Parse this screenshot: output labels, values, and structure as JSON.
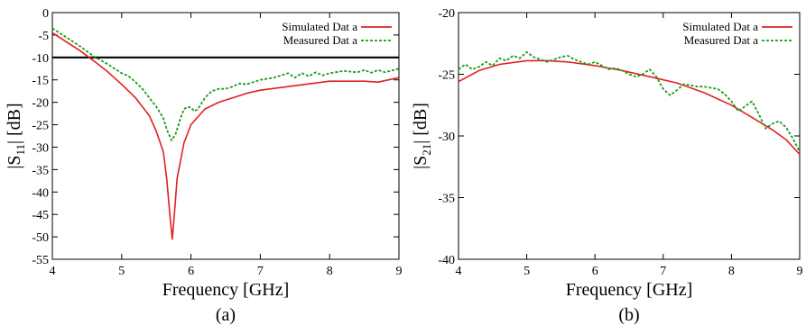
{
  "chart_data": [
    {
      "type": "line",
      "panel_label": "(a)",
      "xlabel": "Frequency    [GHz]",
      "ylabel_main": "|S",
      "ylabel_sub": "11",
      "ylabel_tail": "|  [dB]",
      "xlim": [
        4,
        9
      ],
      "ylim": [
        -55,
        0
      ],
      "xticks": [
        4,
        5,
        6,
        7,
        8,
        9
      ],
      "yticks": [
        0,
        -5,
        -10,
        -15,
        -20,
        -25,
        -30,
        -35,
        -40,
        -45,
        -50,
        -55
      ],
      "reference_line": -10,
      "legend_position": "top-right",
      "series": [
        {
          "name": "Simulated Dat a",
          "color": "#e02020",
          "style": "solid",
          "x": [
            4.0,
            4.2,
            4.4,
            4.6,
            4.8,
            5.0,
            5.2,
            5.4,
            5.5,
            5.6,
            5.65,
            5.7,
            5.73,
            5.76,
            5.8,
            5.9,
            6.0,
            6.2,
            6.4,
            6.6,
            6.8,
            7.0,
            7.5,
            8.0,
            8.5,
            8.7,
            9.0
          ],
          "y": [
            -4.5,
            -6.5,
            -8.5,
            -10.8,
            -13.2,
            -16.0,
            -19.0,
            -23.0,
            -26.5,
            -31.0,
            -37.0,
            -46.0,
            -50.5,
            -45.0,
            -37.0,
            -29.0,
            -25.0,
            -21.5,
            -20.0,
            -19.0,
            -18.0,
            -17.3,
            -16.3,
            -15.3,
            -15.3,
            -15.5,
            -14.5
          ]
        },
        {
          "name": "Measured Dat a",
          "color": "#1a9a1a",
          "style": "dashed",
          "x": [
            4.0,
            4.2,
            4.4,
            4.6,
            4.8,
            5.0,
            5.1,
            5.2,
            5.3,
            5.4,
            5.5,
            5.6,
            5.65,
            5.72,
            5.78,
            5.85,
            5.9,
            5.95,
            6.0,
            6.05,
            6.1,
            6.2,
            6.3,
            6.4,
            6.5,
            6.6,
            6.7,
            6.8,
            6.9,
            7.0,
            7.2,
            7.4,
            7.5,
            7.6,
            7.7,
            7.8,
            7.9,
            8.0,
            8.2,
            8.4,
            8.5,
            8.6,
            8.7,
            8.8,
            9.0
          ],
          "y": [
            -3.5,
            -5.5,
            -7.5,
            -9.8,
            -11.5,
            -13.5,
            -14.2,
            -15.5,
            -17.0,
            -19.0,
            -21.0,
            -23.5,
            -26.0,
            -28.5,
            -27.0,
            -23.5,
            -21.5,
            -21.0,
            -21.2,
            -22.0,
            -21.5,
            -19.0,
            -17.5,
            -17.0,
            -17.0,
            -16.5,
            -15.8,
            -16.0,
            -15.5,
            -15.0,
            -14.5,
            -13.5,
            -14.5,
            -13.5,
            -14.2,
            -13.3,
            -14.0,
            -13.5,
            -13.0,
            -13.3,
            -12.8,
            -13.4,
            -12.8,
            -13.3,
            -12.5
          ]
        }
      ]
    },
    {
      "type": "line",
      "panel_label": "(b)",
      "xlabel": "Frequency    [GHz]",
      "ylabel_main": "|S",
      "ylabel_sub": "21",
      "ylabel_tail": "|  [dB]",
      "xlim": [
        4,
        9
      ],
      "ylim": [
        -40,
        -20
      ],
      "xticks": [
        4,
        5,
        6,
        7,
        8,
        9
      ],
      "yticks": [
        -20,
        -25,
        -30,
        -35,
        -40
      ],
      "legend_position": "top-right",
      "series": [
        {
          "name": "Simulated Dat a",
          "color": "#e02020",
          "style": "solid",
          "x": [
            4.0,
            4.3,
            4.6,
            5.0,
            5.3,
            5.6,
            6.0,
            6.4,
            6.8,
            7.2,
            7.6,
            8.0,
            8.3,
            8.6,
            8.8,
            9.0
          ],
          "y": [
            -25.6,
            -24.7,
            -24.2,
            -23.9,
            -23.9,
            -24.0,
            -24.3,
            -24.7,
            -25.2,
            -25.7,
            -26.5,
            -27.5,
            -28.5,
            -29.5,
            -30.3,
            -31.5
          ]
        },
        {
          "name": "Measured Dat a",
          "color": "#1a9a1a",
          "style": "dashed",
          "x": [
            4.0,
            4.1,
            4.2,
            4.3,
            4.4,
            4.5,
            4.6,
            4.7,
            4.8,
            4.9,
            5.0,
            5.1,
            5.2,
            5.3,
            5.4,
            5.5,
            5.6,
            5.7,
            5.8,
            5.9,
            6.0,
            6.1,
            6.2,
            6.3,
            6.4,
            6.5,
            6.6,
            6.7,
            6.8,
            6.9,
            7.0,
            7.1,
            7.2,
            7.3,
            7.4,
            7.5,
            7.6,
            7.7,
            7.8,
            7.9,
            8.0,
            8.1,
            8.2,
            8.3,
            8.4,
            8.5,
            8.6,
            8.7,
            8.8,
            8.9,
            9.0
          ],
          "y": [
            -24.6,
            -24.2,
            -24.6,
            -24.4,
            -24.0,
            -24.3,
            -23.7,
            -23.9,
            -23.5,
            -23.7,
            -23.2,
            -23.6,
            -23.8,
            -24.0,
            -23.8,
            -23.6,
            -23.5,
            -23.8,
            -24.0,
            -24.2,
            -24.0,
            -24.3,
            -24.6,
            -24.5,
            -24.7,
            -25.0,
            -25.2,
            -25.0,
            -24.6,
            -25.2,
            -26.2,
            -26.7,
            -26.3,
            -25.8,
            -25.9,
            -26.0,
            -26.0,
            -26.1,
            -26.2,
            -26.6,
            -27.2,
            -28.0,
            -27.6,
            -27.2,
            -28.2,
            -29.4,
            -29.0,
            -28.8,
            -29.3,
            -30.2,
            -31.3
          ]
        }
      ]
    }
  ]
}
